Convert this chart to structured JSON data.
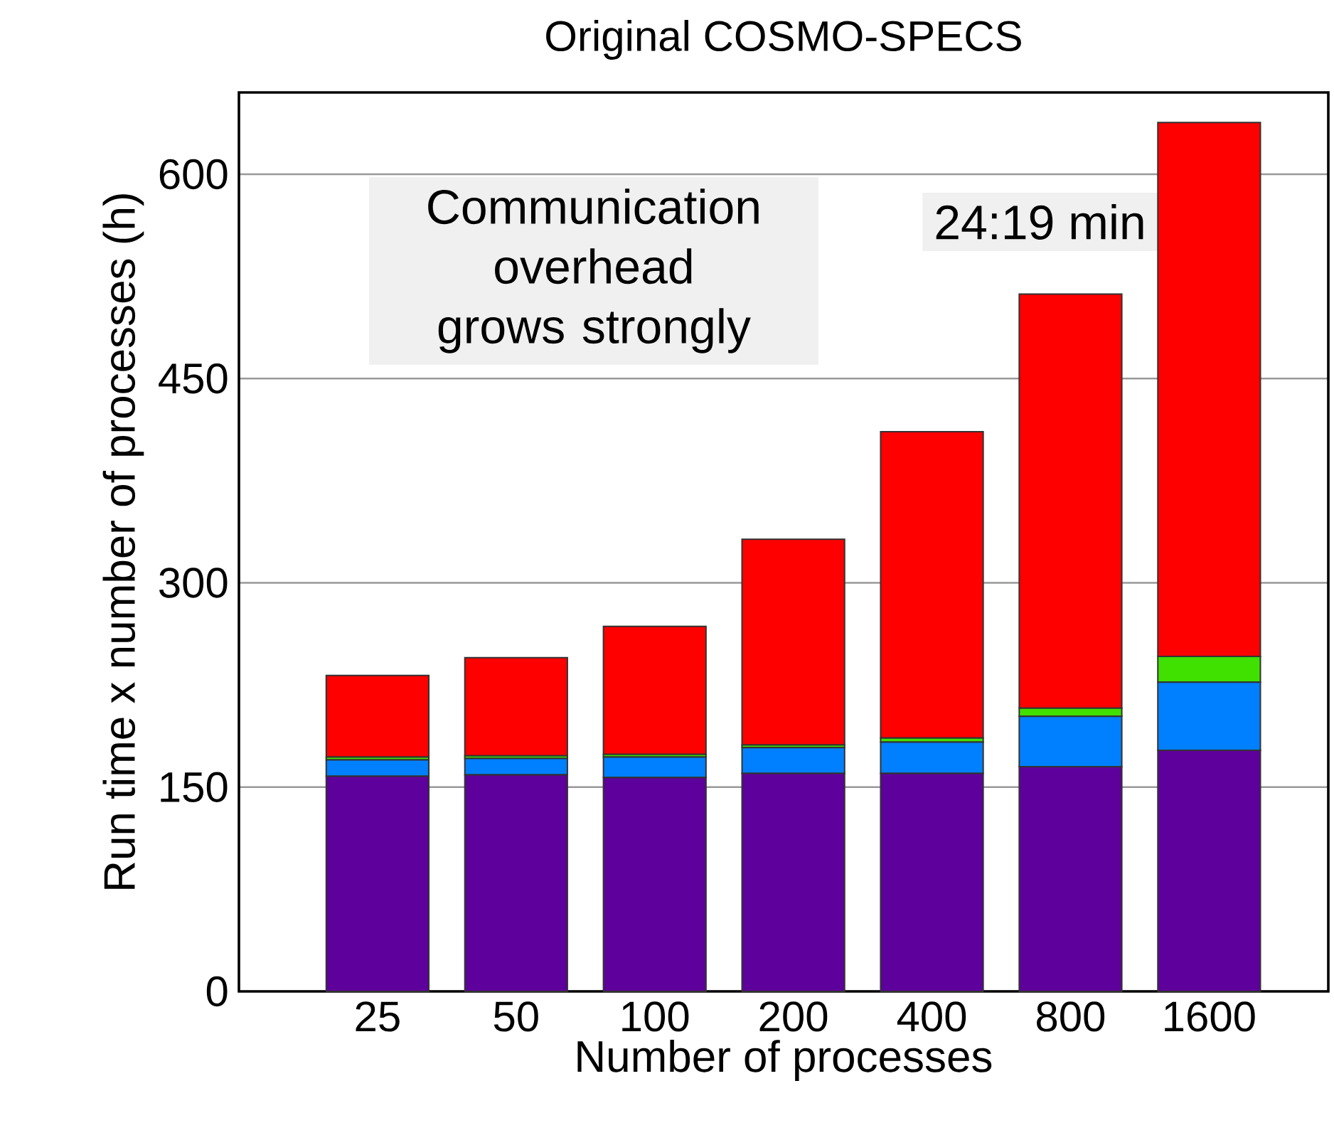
{
  "chart_data": {
    "type": "bar",
    "stacked": true,
    "title": "Original COSMO-SPECS",
    "xlabel": "Number of processes",
    "ylabel": "Run time x number of processes (h)",
    "categories": [
      "25",
      "50",
      "100",
      "200",
      "400",
      "800",
      "1600"
    ],
    "series": [
      {
        "color": "#5e009b",
        "values": [
          158,
          159,
          157,
          160,
          160,
          165,
          177
        ]
      },
      {
        "color": "#0080ff",
        "values": [
          12,
          12,
          15,
          19,
          23,
          37,
          50
        ]
      },
      {
        "color": "#40e000",
        "values": [
          2,
          2,
          2,
          2,
          3,
          6,
          19
        ]
      },
      {
        "color": "#ff0000",
        "values": [
          60,
          72,
          94,
          151,
          225,
          304,
          392
        ]
      }
    ],
    "ylim": [
      0,
      660
    ],
    "yticks": [
      0,
      150,
      300,
      450,
      600
    ],
    "grid": "y",
    "annotations": [
      "Communication overhead grows strongly",
      "24:19 min"
    ]
  }
}
